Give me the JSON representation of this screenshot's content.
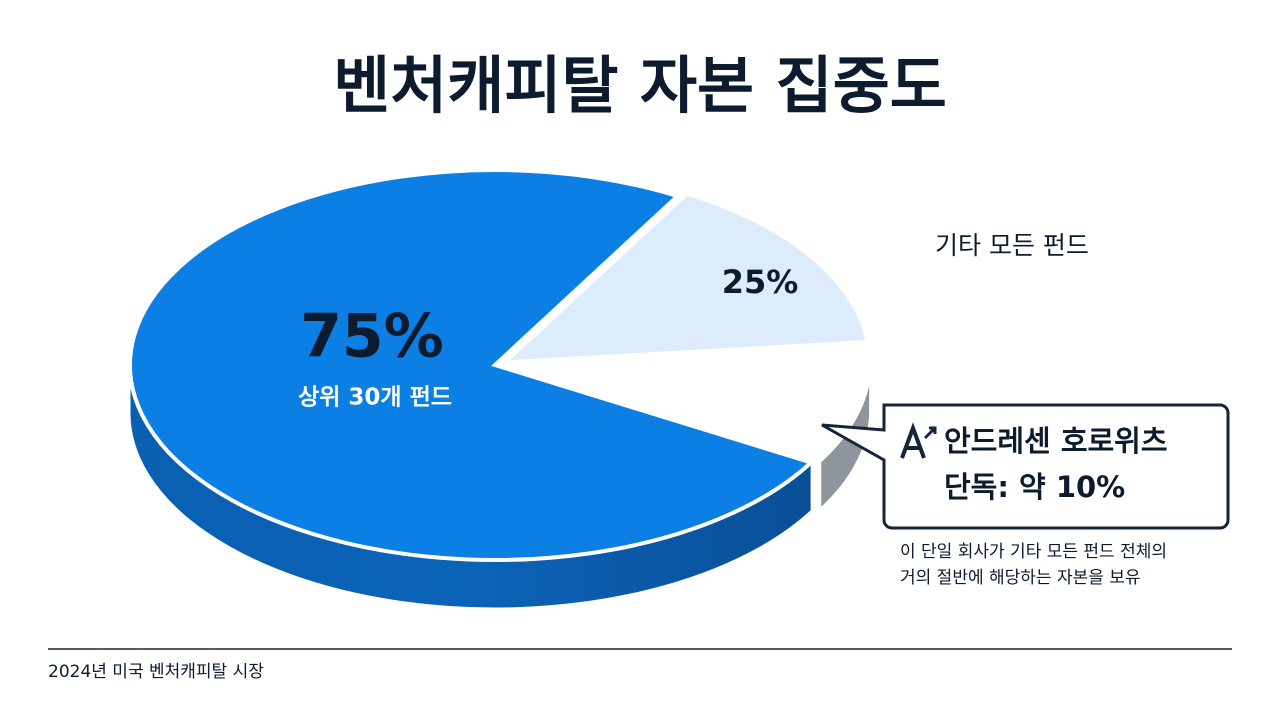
{
  "chart_data": {
    "type": "pie",
    "title": "벤처캐피탈 자본 집중도",
    "categories": [
      "상위 30개 펀드",
      "기타 모든 펀드"
    ],
    "values": [
      75,
      25
    ],
    "value_labels": [
      "75%",
      "25%"
    ],
    "colors": [
      "#0b7fe3",
      "#dcecfa"
    ],
    "callout": {
      "title": "안드레센 호로위츠",
      "value": 10,
      "value_label": "단독: 약 10%",
      "color": "#ffffff",
      "note": [
        "이 단일 회사가 기타 모든 펀드 전체의",
        "거의 절반에 해당하는 자본을 보유"
      ]
    },
    "footer": "2024년 미국 벤처캐피탈 시장"
  }
}
